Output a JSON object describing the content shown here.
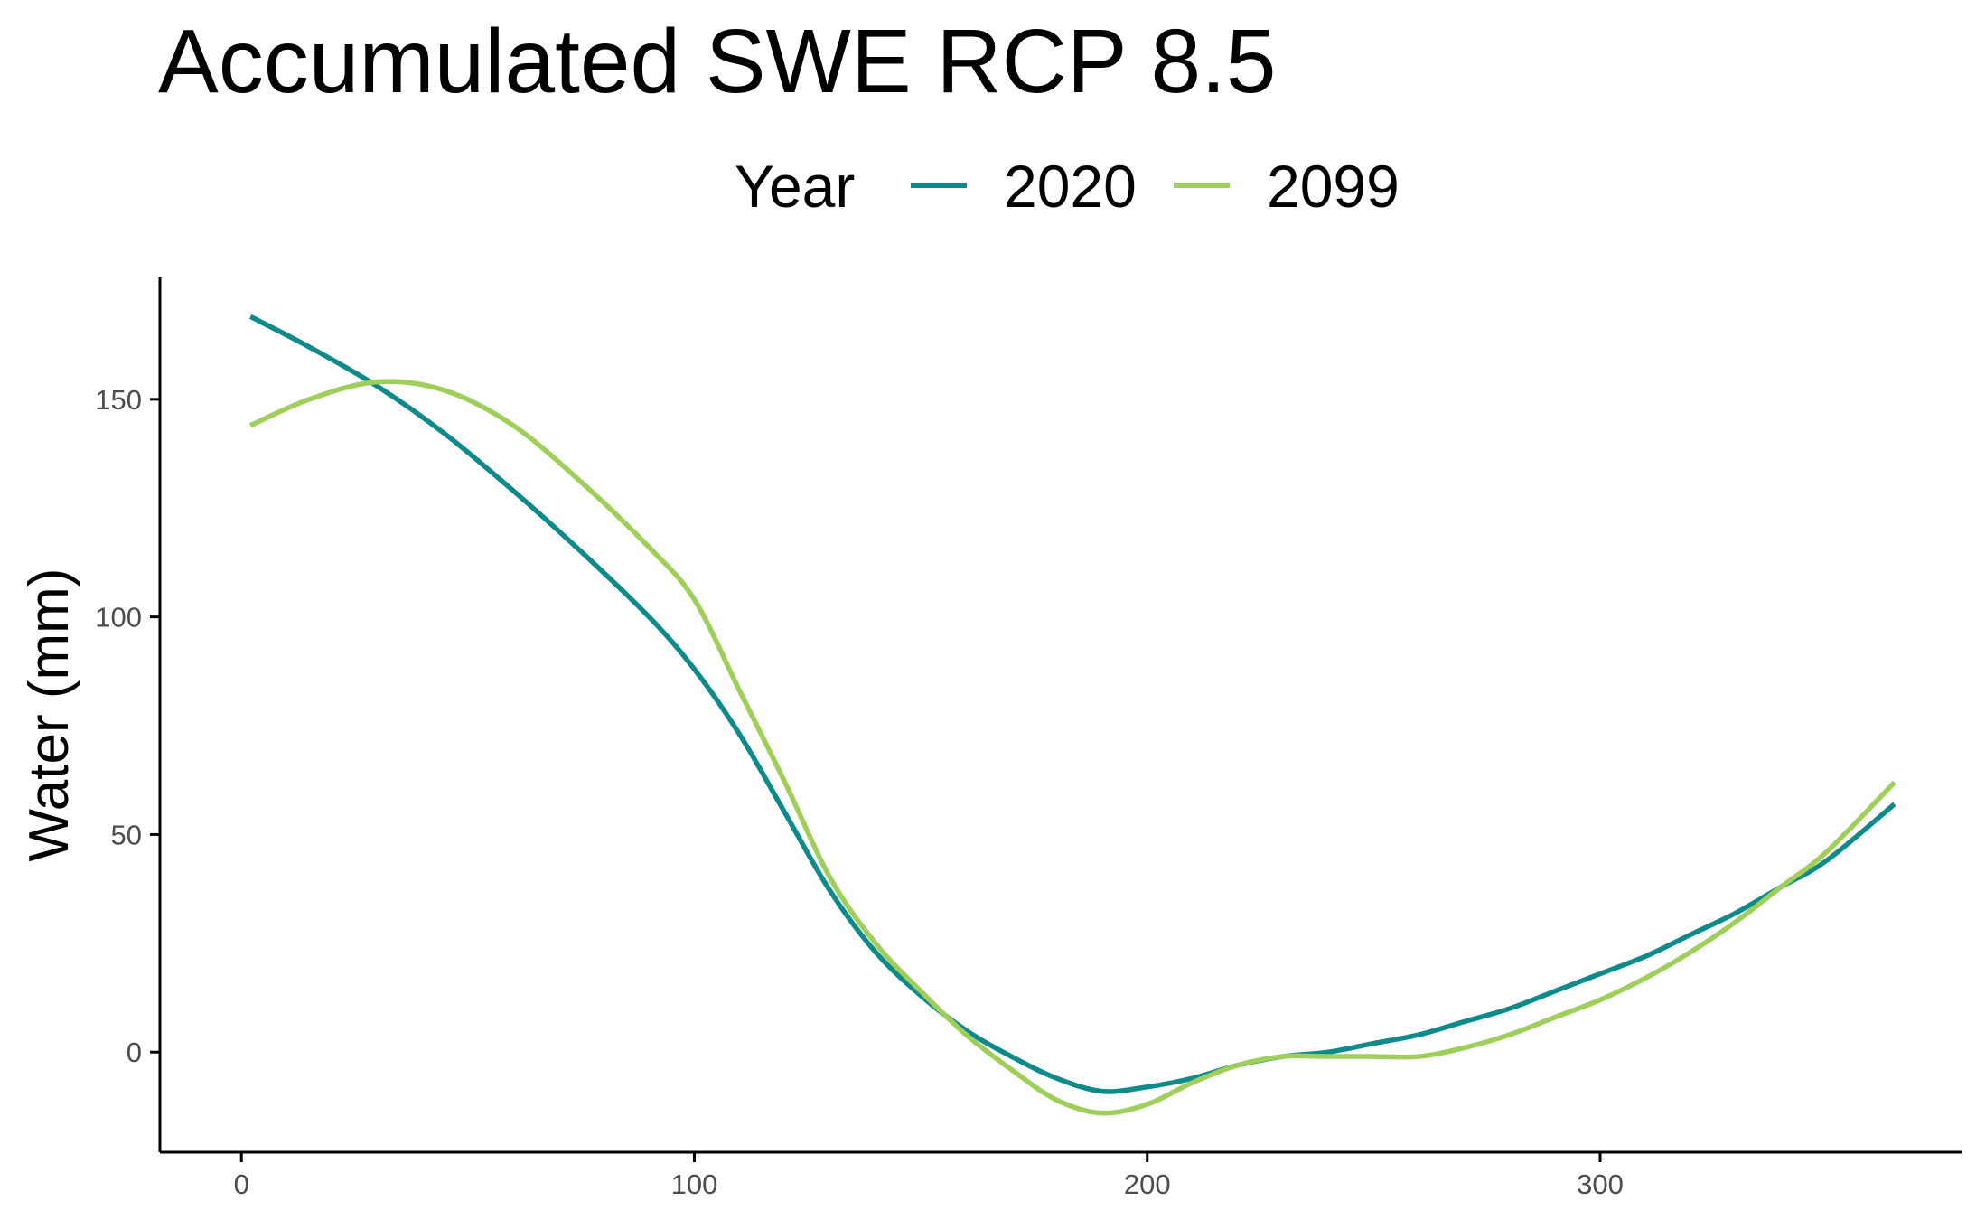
{
  "chart_data": {
    "type": "line",
    "title": "Accumulated SWE RCP 8.5",
    "xlabel": "",
    "ylabel": "Water (mm)",
    "xlim": [
      -18,
      380
    ],
    "ylim": [
      -23,
      178
    ],
    "x_ticks": [
      0,
      100,
      200,
      300
    ],
    "y_ticks": [
      0,
      50,
      100,
      150
    ],
    "grid": false,
    "legend": {
      "title": "Year",
      "position": "top"
    },
    "series": [
      {
        "name": "2020",
        "color": "#0e8a8a",
        "x": [
          2,
          15,
          30,
          45,
          60,
          75,
          90,
          100,
          110,
          120,
          130,
          140,
          150,
          160,
          170,
          180,
          190,
          200,
          210,
          220,
          230,
          240,
          250,
          260,
          270,
          280,
          290,
          300,
          310,
          320,
          330,
          340,
          350,
          365
        ],
        "y": [
          169,
          162,
          153,
          142,
          129,
          115,
          100,
          88,
          73,
          55,
          37,
          23,
          13,
          5,
          -1,
          -6,
          -9,
          -8,
          -6,
          -3,
          -1,
          0,
          2,
          4,
          7,
          10,
          14,
          18,
          22,
          27,
          32,
          38,
          44,
          57
        ]
      },
      {
        "name": "2099",
        "color": "#9fcf5a",
        "x": [
          2,
          15,
          30,
          45,
          60,
          75,
          90,
          100,
          110,
          120,
          130,
          140,
          150,
          160,
          170,
          180,
          190,
          200,
          210,
          220,
          230,
          240,
          250,
          260,
          270,
          280,
          290,
          300,
          310,
          320,
          330,
          340,
          350,
          365
        ],
        "y": [
          144,
          150,
          154,
          152,
          144,
          131,
          116,
          104,
          83,
          62,
          40,
          25,
          14,
          4,
          -4,
          -11,
          -14,
          -12,
          -7,
          -3,
          -1,
          -1,
          -1,
          -1,
          1,
          4,
          8,
          12,
          17,
          23,
          30,
          38,
          46,
          62
        ]
      }
    ]
  }
}
